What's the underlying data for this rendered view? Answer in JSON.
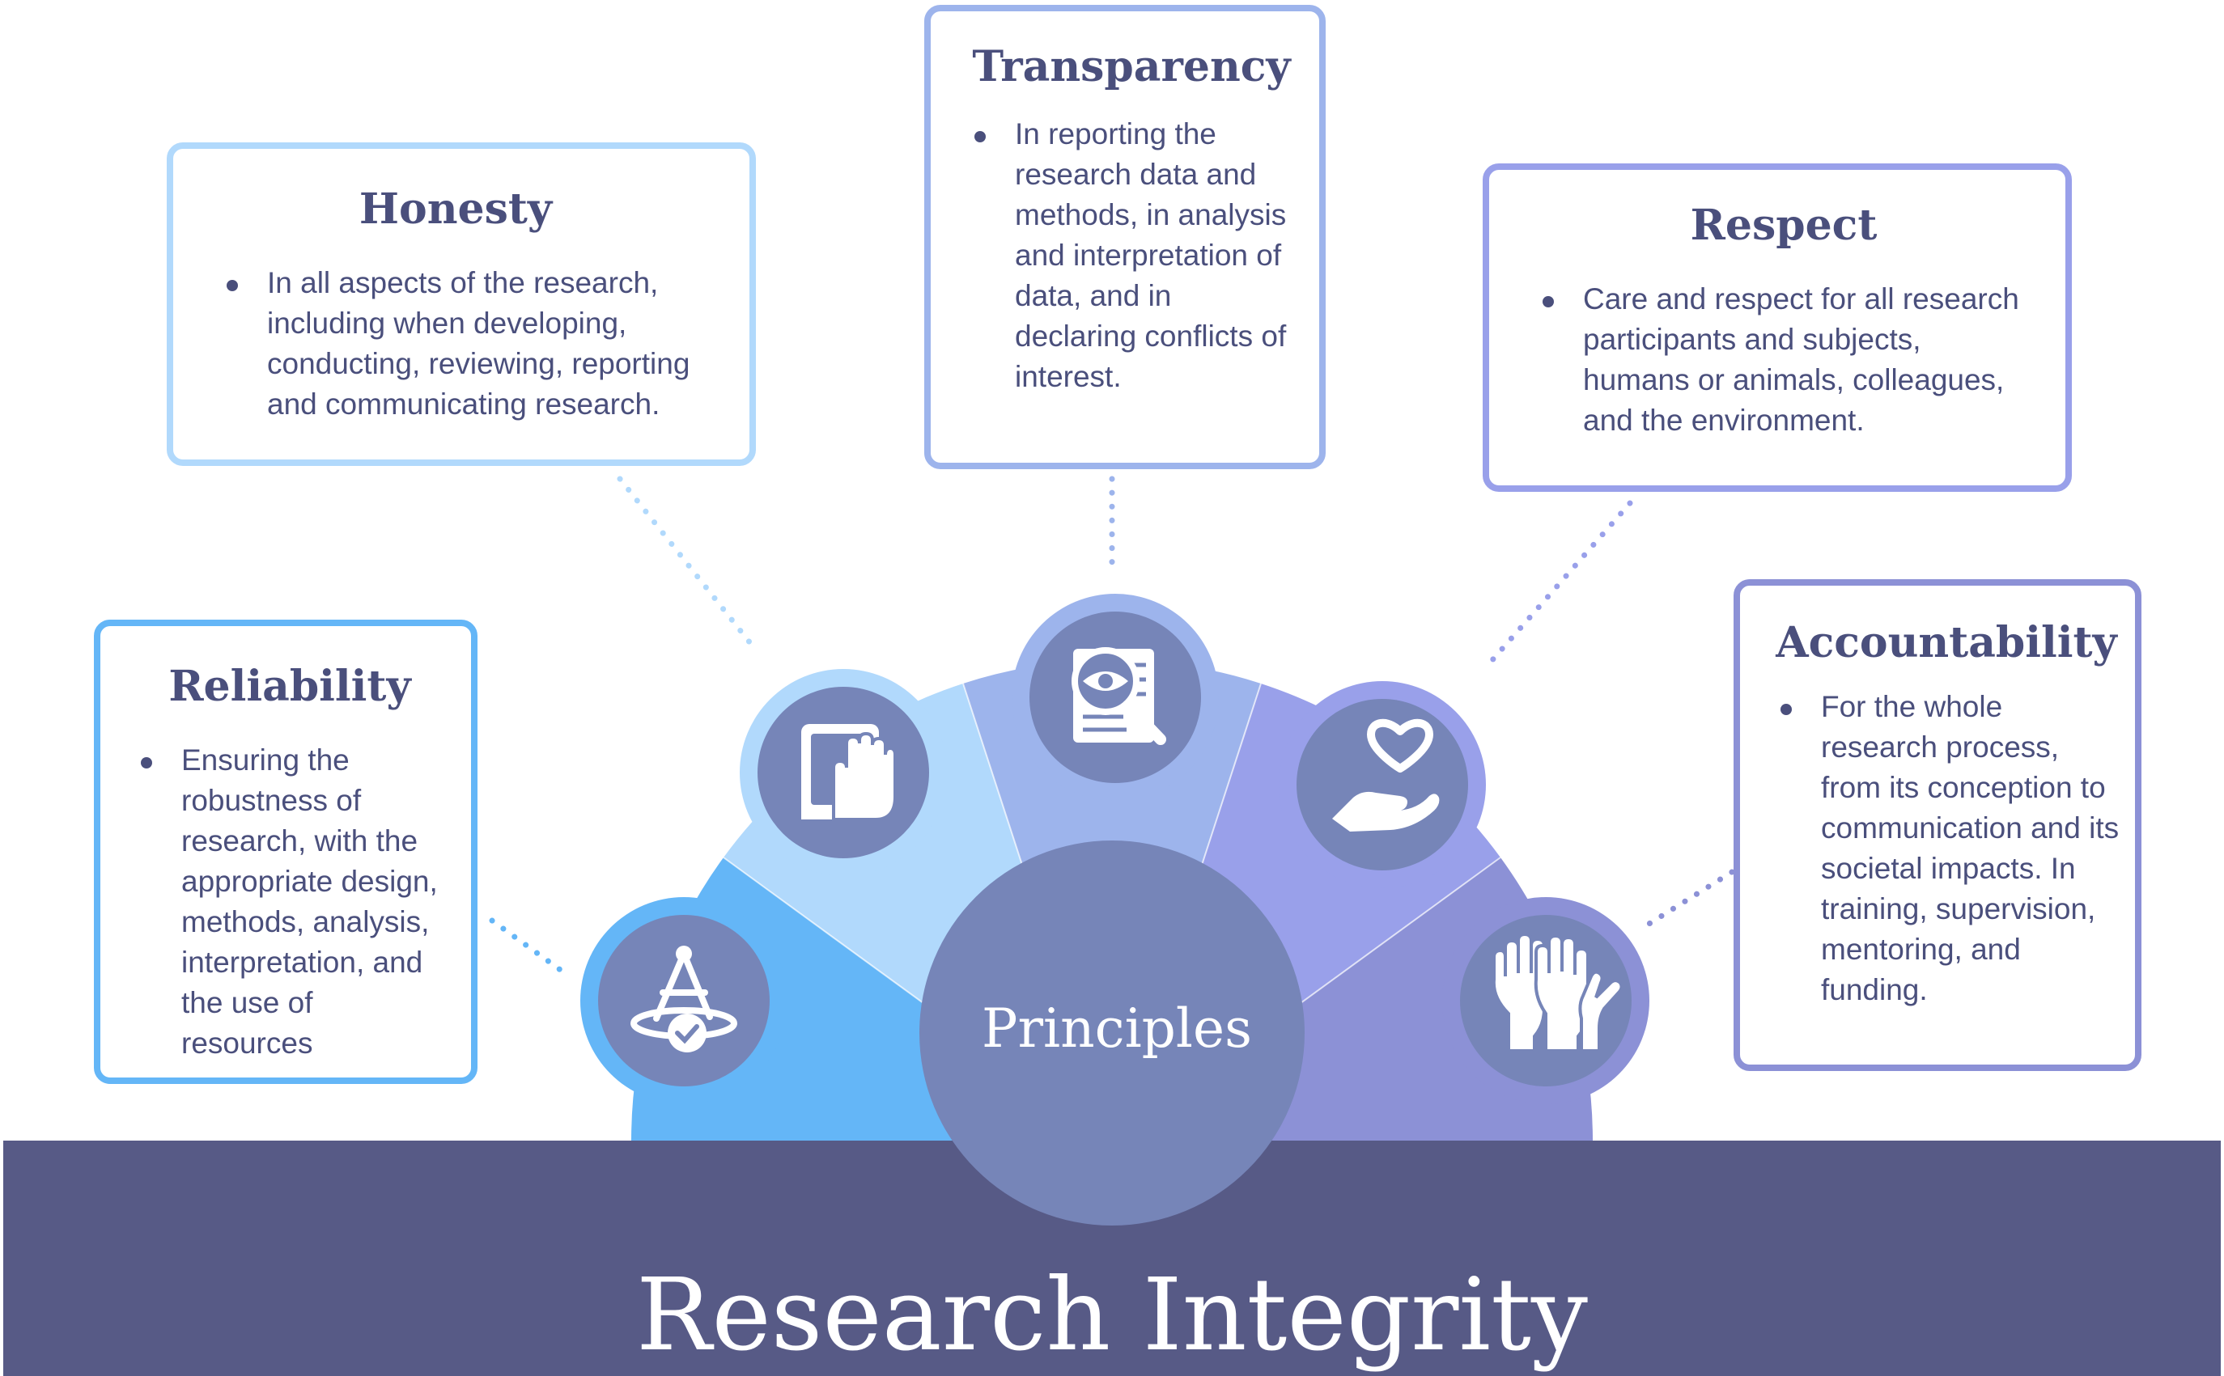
{
  "diagram": {
    "title": "Research Integrity",
    "center_label": "Principles",
    "colors": {
      "band": "#575a86",
      "center": "#7685b8",
      "reliability": "#64b6f7",
      "honesty": "#b1d9fc",
      "transparency": "#9db4ec",
      "respect": "#99a0ea",
      "accountability": "#8c91d6",
      "icon_disc": "#7685b8",
      "text": "#4a4f7c"
    },
    "principles": [
      {
        "id": "reliability",
        "title": "Reliability",
        "icon": "compass-check-icon",
        "text": "Ensuring the robustness of research, with the appropriate design, methods, analysis, interpretation, and the use of resources"
      },
      {
        "id": "honesty",
        "title": "Honesty",
        "icon": "hand-on-book-icon",
        "text": "In all aspects of the research, including when developing, conducting, reviewing, reporting and communicating research."
      },
      {
        "id": "transparency",
        "title": "Transparency",
        "icon": "magnifier-document-icon",
        "text": "In reporting the research data and methods, in analysis and interpretation of data, and in declaring conflicts of interest."
      },
      {
        "id": "respect",
        "title": "Respect",
        "icon": "heart-in-hand-icon",
        "text": "Care and respect for all research participants and subjects, humans or animals, colleagues, and the environment."
      },
      {
        "id": "accountability",
        "title": "Accountability",
        "icon": "raised-hands-icon",
        "text": "For the whole research process, from its conception to communication and its societal impacts. In training, supervision, mentoring, and funding."
      }
    ]
  }
}
